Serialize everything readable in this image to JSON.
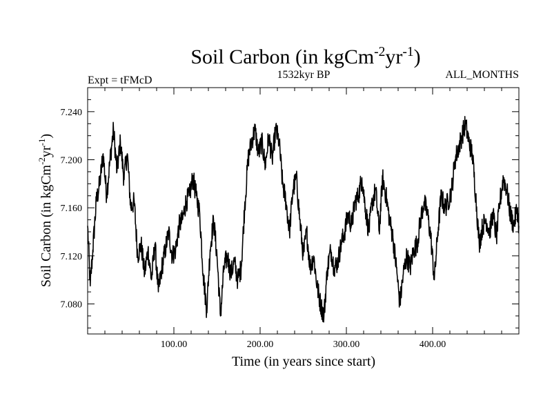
{
  "chart_data": {
    "type": "line",
    "title": "Soil Carbon (in kgCm",
    "title_unit_parts": [
      "-2",
      "yr",
      "-1",
      ")"
    ],
    "subtitle_left": "Expt = tFMcD",
    "subtitle_center": "1532kyr BP",
    "subtitle_right": "ALL_MONTHS",
    "xlabel": "Time (in years since start)",
    "ylabel": "Soil Carbon (in kgCm",
    "ylabel_unit_parts": [
      "-2",
      "yr",
      "-1",
      ")"
    ],
    "xlim": [
      0,
      500
    ],
    "ylim": [
      7.055,
      7.26
    ],
    "x_ticks": [
      100,
      200,
      300,
      400
    ],
    "x_tick_labels": [
      "100.00",
      "200.00",
      "300.00",
      "400.00"
    ],
    "y_ticks": [
      7.08,
      7.12,
      7.16,
      7.2,
      7.24
    ],
    "y_tick_labels": [
      "7.080",
      "7.120",
      "7.160",
      "7.200",
      "7.240"
    ],
    "series": [
      {
        "name": "Soil Carbon",
        "color": "#000000",
        "x": [
          0,
          3,
          6,
          10,
          14,
          18,
          22,
          26,
          30,
          34,
          38,
          42,
          46,
          50,
          54,
          58,
          62,
          66,
          70,
          74,
          78,
          82,
          86,
          90,
          94,
          98,
          102,
          106,
          110,
          114,
          118,
          122,
          126,
          130,
          134,
          138,
          142,
          146,
          150,
          154,
          158,
          162,
          166,
          170,
          174,
          178,
          182,
          186,
          190,
          194,
          198,
          202,
          206,
          210,
          214,
          218,
          222,
          226,
          230,
          234,
          238,
          242,
          246,
          250,
          254,
          258,
          262,
          266,
          270,
          274,
          278,
          282,
          286,
          290,
          294,
          298,
          302,
          306,
          310,
          314,
          318,
          322,
          326,
          330,
          334,
          338,
          342,
          346,
          350,
          354,
          358,
          362,
          366,
          370,
          374,
          378,
          382,
          386,
          390,
          394,
          398,
          402,
          406,
          410,
          414,
          418,
          422,
          426,
          430,
          434,
          438,
          442,
          446,
          450,
          454,
          458,
          462,
          466,
          470,
          474,
          478,
          482,
          486,
          490,
          494,
          498,
          500
        ],
        "y": [
          7.145,
          7.095,
          7.125,
          7.165,
          7.18,
          7.205,
          7.17,
          7.2,
          7.225,
          7.19,
          7.215,
          7.185,
          7.205,
          7.16,
          7.165,
          7.12,
          7.13,
          7.105,
          7.125,
          7.1,
          7.13,
          7.09,
          7.11,
          7.125,
          7.14,
          7.12,
          7.125,
          7.145,
          7.15,
          7.165,
          7.17,
          7.185,
          7.17,
          7.155,
          7.105,
          7.075,
          7.125,
          7.15,
          7.12,
          7.07,
          7.11,
          7.12,
          7.105,
          7.115,
          7.1,
          7.11,
          7.16,
          7.2,
          7.215,
          7.225,
          7.205,
          7.215,
          7.195,
          7.22,
          7.2,
          7.225,
          7.215,
          7.18,
          7.165,
          7.14,
          7.175,
          7.185,
          7.15,
          7.12,
          7.14,
          7.11,
          7.12,
          7.095,
          7.08,
          7.07,
          7.11,
          7.125,
          7.11,
          7.115,
          7.13,
          7.14,
          7.155,
          7.145,
          7.165,
          7.17,
          7.185,
          7.16,
          7.14,
          7.165,
          7.175,
          7.14,
          7.185,
          7.17,
          7.15,
          7.135,
          7.11,
          7.08,
          7.105,
          7.12,
          7.11,
          7.125,
          7.13,
          7.15,
          7.165,
          7.155,
          7.135,
          7.1,
          7.14,
          7.17,
          7.16,
          7.165,
          7.175,
          7.2,
          7.21,
          7.22,
          7.23,
          7.215,
          7.205,
          7.17,
          7.13,
          7.145,
          7.15,
          7.14,
          7.155,
          7.135,
          7.165,
          7.185,
          7.175,
          7.155,
          7.145,
          7.16,
          7.145
        ]
      }
    ]
  }
}
